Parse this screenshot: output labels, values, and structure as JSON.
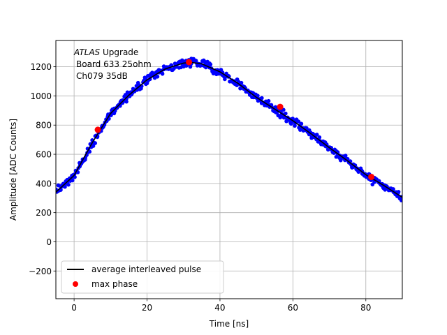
{
  "chart_data": {
    "type": "scatter",
    "xlabel": "Time [ns]",
    "ylabel": "Amplitude [ADC Counts]",
    "xlim": [
      -5,
      90
    ],
    "ylim": [
      -390,
      1380
    ],
    "xticks": [
      0,
      20,
      40,
      60,
      80
    ],
    "yticks": [
      -200,
      0,
      200,
      400,
      600,
      800,
      1000,
      1200
    ],
    "grid": true,
    "annotation": {
      "line1_italic": "ATLAS",
      "line1_rest": " Upgrade",
      "line2": "Board 633 25ohm",
      "line3": "Ch079 35dB"
    },
    "legend": {
      "location": "lower-left",
      "entries": [
        {
          "label": "average interleaved pulse",
          "style": "line",
          "color": "#000000"
        },
        {
          "label": "max phase",
          "style": "marker",
          "color": "#ff0000"
        }
      ]
    },
    "series": [
      {
        "name": "samples",
        "style": "scatter",
        "color": "#0000ff",
        "x_range": [
          -5,
          90
        ],
        "n_points": 480,
        "spread": 18
      },
      {
        "name": "average interleaved pulse",
        "style": "line",
        "color": "#000000",
        "x": [
          -5,
          0,
          5,
          10,
          15,
          20,
          25,
          30,
          32,
          35,
          40,
          45,
          50,
          55,
          60,
          65,
          70,
          75,
          80,
          85,
          90
        ],
        "y": [
          340,
          455,
          680,
          880,
          1005,
          1110,
          1185,
          1225,
          1230,
          1220,
          1165,
          1085,
          990,
          910,
          830,
          740,
          645,
          555,
          460,
          385,
          305
        ]
      },
      {
        "name": "max phase",
        "style": "marker",
        "color": "#ff0000",
        "x": [
          6.5,
          31.5,
          56.5,
          81.5
        ],
        "y": [
          768,
          1232,
          925,
          445
        ]
      }
    ]
  }
}
